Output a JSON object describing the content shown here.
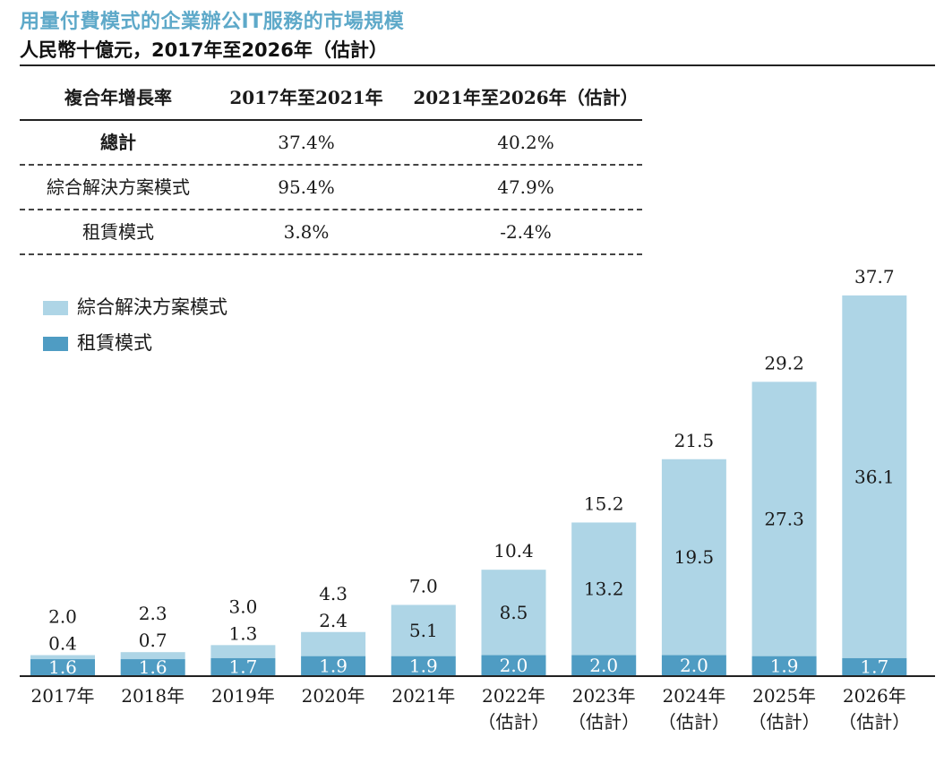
{
  "header": {
    "title": "用量付費模式的企業辦公IT服務的市場規模",
    "subtitle": "人民幣十億元，2017年至2026年（估計）"
  },
  "cagr_table": {
    "columns": [
      "複合年增長率",
      "2017年至2021年",
      "2021年至2026年（估計）"
    ],
    "rows": [
      {
        "label": "總計",
        "v1": "37.4%",
        "v2": "40.2%"
      },
      {
        "label": "綜合解決方案模式",
        "v1": "95.4%",
        "v2": "47.9%"
      },
      {
        "label": "租賃模式",
        "v1": "3.8%",
        "v2": "-2.4%"
      }
    ]
  },
  "colors": {
    "integrated": "#aed5e6",
    "leasing": "#4f9cc3",
    "title": "#5ea9c9"
  },
  "chart_data": {
    "type": "bar",
    "stacked": true,
    "categories": [
      "2017年",
      "2018年",
      "2019年",
      "2020年",
      "2021年",
      "2022年",
      "2023年",
      "2024年",
      "2025年",
      "2026年"
    ],
    "category_sublabels": [
      "",
      "",
      "",
      "",
      "",
      "（估計）",
      "（估計）",
      "（估計）",
      "（估計）",
      "（估計）"
    ],
    "series": [
      {
        "name": "租賃模式",
        "values": [
          1.6,
          1.6,
          1.7,
          1.9,
          1.9,
          2.0,
          2.0,
          2.0,
          1.9,
          1.7
        ]
      },
      {
        "name": "綜合解決方案模式",
        "values": [
          0.4,
          0.7,
          1.3,
          2.4,
          5.1,
          8.5,
          13.2,
          19.5,
          27.3,
          36.1
        ]
      }
    ],
    "totals": [
      2.0,
      2.3,
      3.0,
      4.3,
      7.0,
      10.4,
      15.2,
      21.5,
      29.2,
      37.7
    ],
    "series_labels": [
      [
        "1.6",
        "1.6",
        "1.7",
        "1.9",
        "1.9",
        "2.0",
        "2.0",
        "2.0",
        "1.9",
        "1.7"
      ],
      [
        "0.4",
        "0.7",
        "1.3",
        "2.4",
        "5.1",
        "8.5",
        "13.2",
        "19.5",
        "27.3",
        "36.1"
      ]
    ],
    "total_labels": [
      "2.0",
      "2.3",
      "3.0",
      "4.3",
      "7.0",
      "10.4",
      "15.2",
      "21.5",
      "29.2",
      "37.7"
    ],
    "legend": [
      "綜合解決方案模式",
      "租賃模式"
    ],
    "legend_position": "top-left",
    "ylim": [
      0,
      37.7
    ],
    "grid": false
  }
}
